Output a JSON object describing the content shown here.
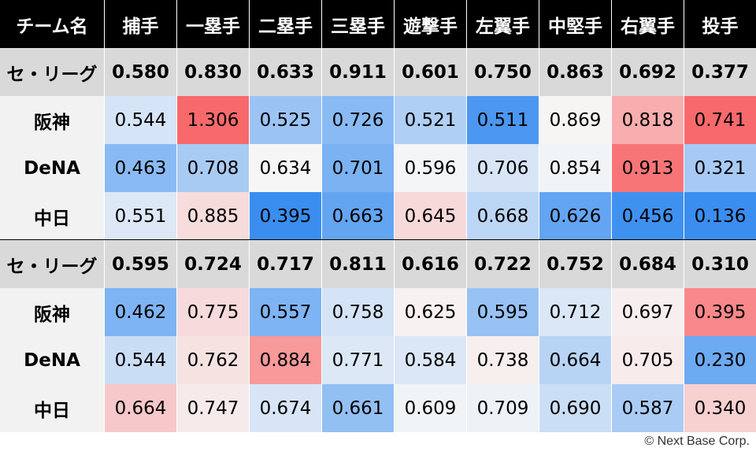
{
  "chart_data": {
    "type": "heatmap",
    "columns": [
      "チーム名",
      "捕手",
      "一塁手",
      "二塁手",
      "三塁手",
      "遊撃手",
      "左翼手",
      "中堅手",
      "右翼手",
      "投手"
    ],
    "blocks": [
      {
        "league_label": "セ・リーグ",
        "league_values": [
          "0.580",
          "0.830",
          "0.633",
          "0.911",
          "0.601",
          "0.750",
          "0.863",
          "0.692",
          "0.377"
        ],
        "teams": [
          {
            "name": "阪神",
            "values": [
              "0.544",
              "1.306",
              "0.525",
              "0.726",
              "0.521",
              "0.511",
              "0.869",
              "0.818",
              "0.741"
            ]
          },
          {
            "name": "DeNA",
            "values": [
              "0.463",
              "0.708",
              "0.634",
              "0.701",
              "0.596",
              "0.706",
              "0.854",
              "0.913",
              "0.321"
            ]
          },
          {
            "name": "中日",
            "values": [
              "0.551",
              "0.885",
              "0.395",
              "0.663",
              "0.645",
              "0.668",
              "0.626",
              "0.456",
              "0.136"
            ]
          }
        ]
      },
      {
        "league_label": "セ・リーグ",
        "league_values": [
          "0.595",
          "0.724",
          "0.717",
          "0.811",
          "0.616",
          "0.722",
          "0.752",
          "0.684",
          "0.310"
        ],
        "teams": [
          {
            "name": "阪神",
            "values": [
              "0.462",
              "0.775",
              "0.557",
              "0.758",
              "0.625",
              "0.595",
              "0.712",
              "0.697",
              "0.395"
            ]
          },
          {
            "name": "DeNA",
            "values": [
              "0.544",
              "0.762",
              "0.884",
              "0.771",
              "0.584",
              "0.738",
              "0.664",
              "0.705",
              "0.230"
            ]
          },
          {
            "name": "中日",
            "values": [
              "0.664",
              "0.747",
              "0.674",
              "0.661",
              "0.609",
              "0.709",
              "0.690",
              "0.587",
              "0.340"
            ]
          }
        ]
      }
    ]
  },
  "colors": {
    "header_bg": "#000000",
    "league_bg": "#d9d9d9",
    "team_bg": "#f2f2f2",
    "high": "#f8696b",
    "mid": "#f7f7f7",
    "low": "#3a8ef0"
  },
  "footer": {
    "copyright": "© Next Base Corp."
  }
}
